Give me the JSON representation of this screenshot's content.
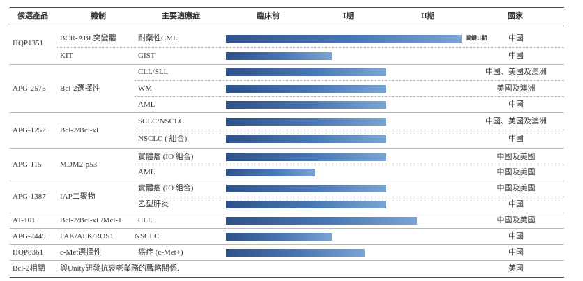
{
  "header": {
    "candidate": "候選產品",
    "mechanism": "機制",
    "indication": "主要適應症",
    "preclinical": "臨床前",
    "phase1": "I期",
    "phase2": "II期",
    "region": "國家"
  },
  "rows": [
    {
      "candidate": "HQP1351",
      "mechanism": "BCR-ABL突變體",
      "indication": "耐藥性CML",
      "progress": 1.0,
      "note": "關鍵II期",
      "region": "中國"
    },
    {
      "candidate": "",
      "mechanism": "KIT",
      "indication": "GIST",
      "progress": 0.45,
      "note": "",
      "region": "中國"
    },
    {
      "candidate": "APG-2575",
      "mechanism": "Bcl-2選擇性",
      "indication": "CLL/SLL",
      "progress": 0.68,
      "note": "",
      "region": "中國、美國及澳洲"
    },
    {
      "candidate": "",
      "mechanism": "",
      "indication": "WM",
      "progress": 0.68,
      "note": "",
      "region": "美國及澳洲"
    },
    {
      "candidate": "",
      "mechanism": "",
      "indication": "AML",
      "progress": 0.68,
      "note": "",
      "region": "中國"
    },
    {
      "candidate": "APG-1252",
      "mechanism": "Bcl-2/Bcl-xL",
      "indication": "SCLC/NSCLC",
      "progress": 0.68,
      "note": "",
      "region": "中國、美國及澳洲"
    },
    {
      "candidate": "",
      "mechanism": "",
      "indication": "NSCLC ( 組合)",
      "progress": 0.68,
      "note": "",
      "region": "中國"
    },
    {
      "candidate": "APG-115",
      "mechanism": "MDM2-p53",
      "indication": "實體瘤 (IO 組合)",
      "progress": 0.68,
      "note": "",
      "region": "中國及美國"
    },
    {
      "candidate": "",
      "mechanism": "",
      "indication": "AML",
      "progress": 0.38,
      "note": "",
      "region": "中國及美國"
    },
    {
      "candidate": "APG-1387",
      "mechanism": "IAP二聚物",
      "indication": "實體瘤 (IO 組合)",
      "progress": 0.68,
      "note": "",
      "region": "中國及美國"
    },
    {
      "candidate": "",
      "mechanism": "",
      "indication": "乙型肝炎",
      "progress": 0.68,
      "note": "",
      "region": "中國"
    },
    {
      "candidate": "AT-101",
      "mechanism": "Bcl-2/Bcl-xL/Mcl-1",
      "indication": "CLL",
      "progress": 0.81,
      "note": "",
      "region": "中國及美國"
    },
    {
      "candidate": "APG-2449",
      "mechanism": "FAK/ALK/ROS1",
      "indication": "NSCLC",
      "progress": 0.45,
      "note": "",
      "region": "中國"
    },
    {
      "candidate": "HQP8361",
      "mechanism": "c-Met選擇性",
      "indication": "癌症 (c-Met+)",
      "progress": 0.59,
      "note": "",
      "region": "中國"
    },
    {
      "candidate": "Bcl-2相關",
      "mechanism": "與Unity研發抗衰老業務的戰略關係.",
      "indication": "",
      "progress": null,
      "note": "",
      "region": "美國"
    }
  ],
  "colors": {
    "bar_start": "#2f5189",
    "bar_end": "#7aa4d4",
    "rule": "#4a4a4a",
    "text": "#3a3a3a"
  }
}
